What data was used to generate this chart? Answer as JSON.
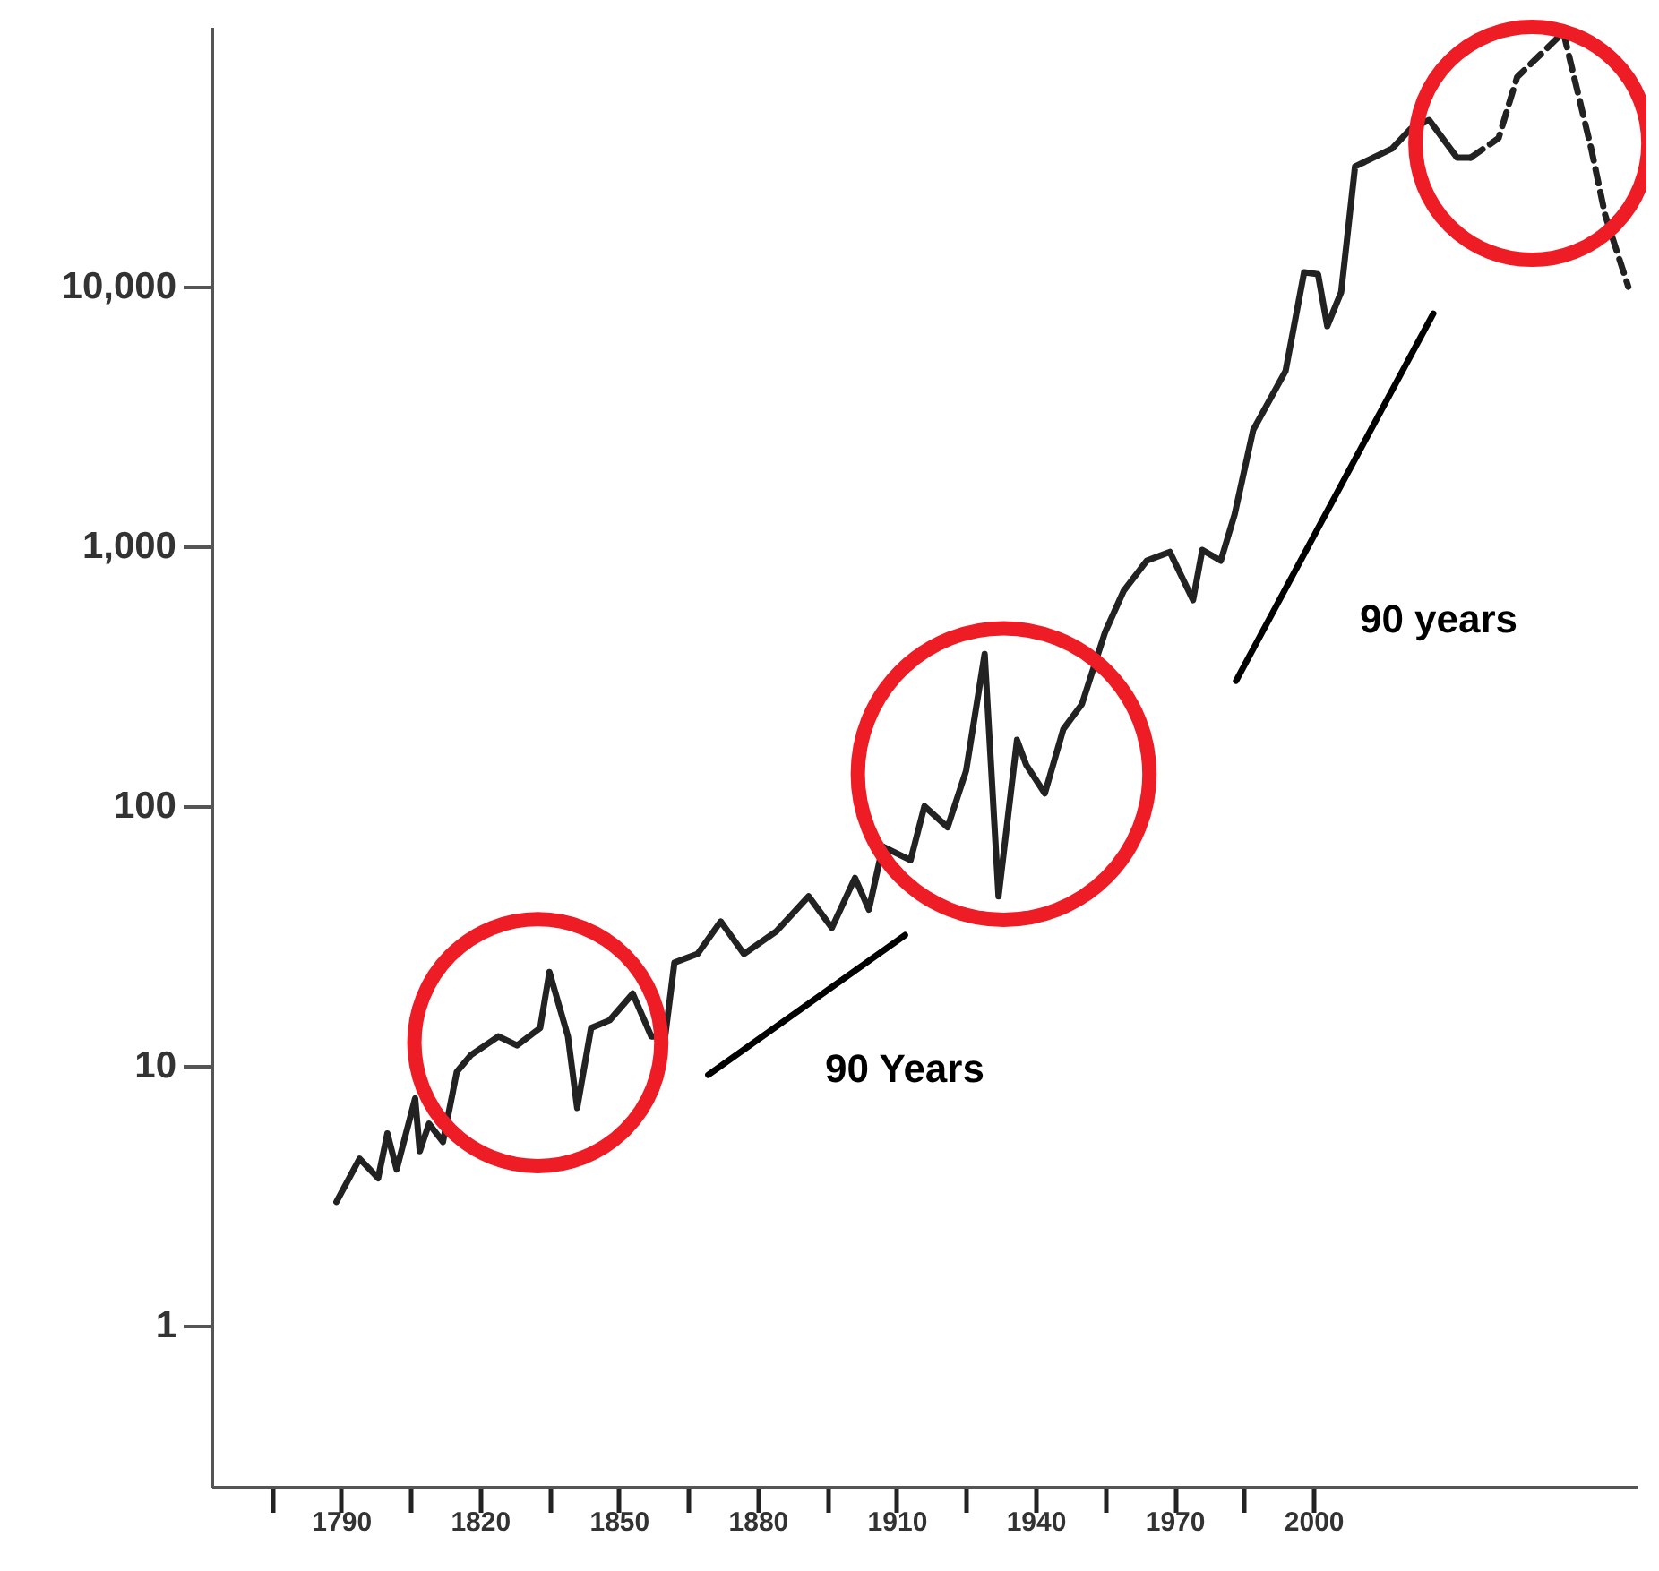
{
  "chart_data": {
    "type": "line",
    "x": [
      1789,
      1794,
      1798,
      1800,
      1802,
      1806,
      1807,
      1809,
      1812,
      1815,
      1818,
      1824,
      1828,
      1833,
      1835,
      1839,
      1841,
      1844,
      1848,
      1853,
      1857,
      1860,
      1862,
      1867,
      1872,
      1877,
      1884,
      1891,
      1896,
      1901,
      1904,
      1907,
      1913,
      1916,
      1921,
      1925,
      1929,
      1932,
      1936,
      1938,
      1942,
      1946,
      1950,
      1955,
      1959,
      1964,
      1969,
      1974,
      1976,
      1980,
      1983,
      1987,
      1994,
      1998,
      2001,
      2003,
      2006,
      2009,
      2017,
      2021,
      2025,
      2031,
      2034
    ],
    "series": [
      {
        "color": "#222222",
        "line_style": "solid",
        "values": [
          3.0,
          4.4,
          3.7,
          5.5,
          4.0,
          7.5,
          4.7,
          6.0,
          5.1,
          9.5,
          11,
          13,
          12,
          14,
          23,
          13,
          6.9,
          14,
          15,
          19,
          13,
          13,
          25,
          27,
          36,
          27,
          33,
          45,
          34,
          53,
          40,
          70,
          62,
          100,
          83,
          137,
          385,
          45,
          180,
          144,
          112,
          198,
          247,
          467,
          673,
          881,
          953,
          621,
          969,
          881,
          1330,
          2810,
          4740,
          11360,
          11170,
          7050,
          9530,
          29000,
          34000,
          40500,
          43800,
          31400,
          31400
        ]
      },
      {
        "color": "#222222",
        "line_style": "dashed",
        "x": [
          2034,
          2040,
          2044,
          2054,
          2060,
          2063,
          2068
        ],
        "values": [
          31400,
          37300,
          64100,
          95300,
          34000,
          18900,
          10000
        ]
      },
      {
        "type": "line",
        "color": "#000000",
        "line_style": "solid",
        "x": [
          1869.3,
          1911.8
        ],
        "values": [
          9.24,
          31.9
        ]
      },
      {
        "type": "line",
        "color": "#000000",
        "line_style": "solid",
        "x": [
          1983.3,
          2025.9
        ],
        "values": [
          304,
          7880
        ]
      }
    ],
    "log": "y",
    "xlim": [
      1762,
      2070
    ],
    "xticks": [
      {
        "value": 1775,
        "label": null
      },
      1790,
      {
        "value": 1805,
        "label": null
      },
      1820,
      {
        "value": 1835,
        "label": null
      },
      1850,
      {
        "value": 1865,
        "label": null
      },
      1880,
      {
        "value": 1895,
        "label": null
      },
      1910,
      {
        "value": 1925,
        "label": null
      },
      1940,
      {
        "value": 1955,
        "label": null
      },
      1970,
      {
        "value": 1985,
        "label": null
      },
      2000
    ],
    "ylim": [
      0.24,
      100000
    ],
    "yticks": [
      1,
      10,
      100,
      {
        "value": 1000,
        "label": "1,000"
      },
      {
        "value": 10000,
        "label": "10,000"
      }
    ],
    "grid": false,
    "annotations": [
      "90 Years",
      "90 years"
    ]
  }
}
